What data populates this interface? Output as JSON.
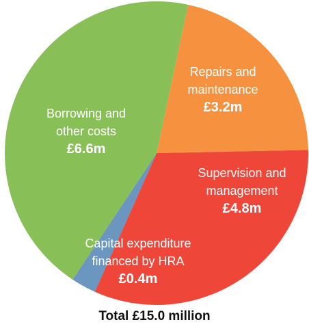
{
  "chart_data": {
    "type": "pie",
    "unit": "£m",
    "slices": [
      {
        "label_lines": [
          "Repairs and",
          "maintenance"
        ],
        "value": 3.2,
        "value_label": "£3.2m",
        "color": "#f6923f"
      },
      {
        "label_lines": [
          "Supervision and",
          "management"
        ],
        "value": 4.8,
        "value_label": "£4.8m",
        "color": "#ef463a"
      },
      {
        "label_lines": [
          "Capital expenditure",
          "financed by HRA"
        ],
        "value": 0.4,
        "value_label": "£0.4m",
        "color": "#6b96c0"
      },
      {
        "label_lines": [
          "Borrowing and",
          "other costs"
        ],
        "value": 6.6,
        "value_label": "£6.6m",
        "color": "#88c057"
      }
    ],
    "total_label": "Total £15.0 million",
    "start_angle_deg": 12
  }
}
